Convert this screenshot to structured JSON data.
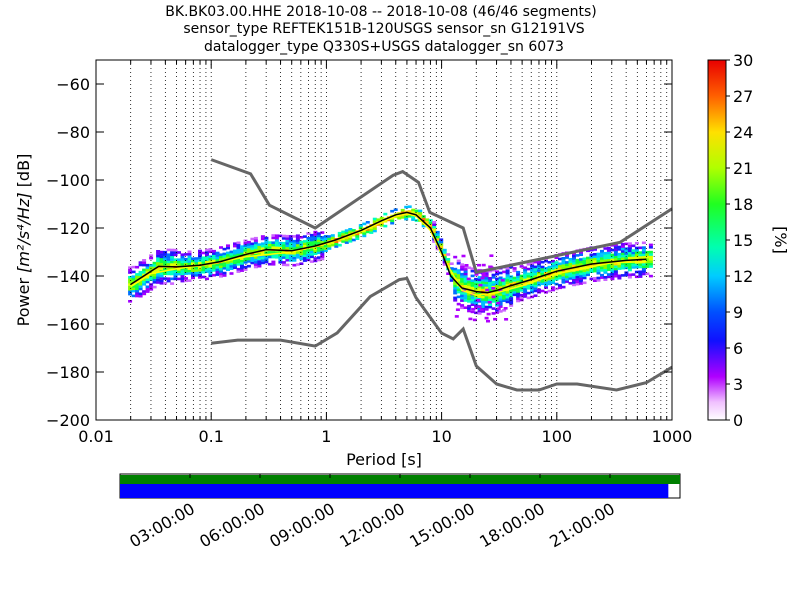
{
  "chart_data": {
    "type": "heatmap",
    "title_lines": [
      "BK.BK03.00.HHE   2018-10-08 -- 2018-10-08  (46/46 segments)",
      "sensor_type REFTEK151B-120USGS sensor_sn G12191VS",
      "datalogger_type Q330S+USGS datalogger_sn 6073"
    ],
    "xlabel": "Period [s]",
    "ylabel_prefix": "Power ",
    "ylabel_units": "[m²/s⁴/Hz]",
    "ylabel_suffix": " [dB]",
    "x_scale": "log",
    "xlim": [
      0.01,
      1000
    ],
    "ylim": [
      -200,
      -50
    ],
    "x_ticks": [
      {
        "value": 0.01,
        "label": "0.01"
      },
      {
        "value": 0.1,
        "label": "0.1"
      },
      {
        "value": 1,
        "label": "1"
      },
      {
        "value": 10,
        "label": "10"
      },
      {
        "value": 100,
        "label": "100"
      },
      {
        "value": 1000,
        "label": "1000"
      }
    ],
    "y_ticks": [
      -60,
      -80,
      -100,
      -120,
      -140,
      -160,
      -180,
      -200
    ],
    "grid": "dotted vertical lines at decade subdivisions",
    "colorbar": {
      "label": "[%]",
      "range": [
        0,
        30
      ],
      "ticks": [
        0,
        3,
        6,
        9,
        12,
        15,
        18,
        21,
        24,
        27,
        30
      ]
    },
    "noise_models": [
      {
        "name": "high",
        "points": [
          [
            0.1,
            -91.5
          ],
          [
            0.22,
            -97.4
          ],
          [
            0.32,
            -110.5
          ],
          [
            0.8,
            -120
          ],
          [
            3.8,
            -98
          ],
          [
            4.6,
            -96.5
          ],
          [
            6.3,
            -101
          ],
          [
            7.9,
            -113.5
          ],
          [
            15.4,
            -120
          ],
          [
            20,
            -138.5
          ],
          [
            354,
            -126
          ],
          [
            1000,
            -112
          ]
        ]
      },
      {
        "name": "low",
        "points": [
          [
            0.1,
            -168
          ],
          [
            0.17,
            -166.7
          ],
          [
            0.4,
            -166.7
          ],
          [
            0.8,
            -169.2
          ],
          [
            1.24,
            -163.7
          ],
          [
            2.4,
            -148.6
          ],
          [
            4.3,
            -141.5
          ],
          [
            5,
            -141
          ],
          [
            6,
            -149
          ],
          [
            10,
            -163.8
          ],
          [
            12.6,
            -166.2
          ],
          [
            15.4,
            -162.1
          ],
          [
            20,
            -177.5
          ],
          [
            30,
            -185
          ],
          [
            45,
            -187.5
          ],
          [
            70,
            -187.5
          ],
          [
            100,
            -185
          ],
          [
            150,
            -185
          ],
          [
            330,
            -187.5
          ],
          [
            600,
            -184.4
          ],
          [
            1000,
            -178
          ]
        ]
      }
    ],
    "psd_mean": [
      [
        0.02,
        -143.5
      ],
      [
        0.025,
        -140.5
      ],
      [
        0.03,
        -138
      ],
      [
        0.035,
        -136
      ],
      [
        0.05,
        -136.2
      ],
      [
        0.08,
        -135.5
      ],
      [
        0.12,
        -134
      ],
      [
        0.2,
        -131
      ],
      [
        0.3,
        -129
      ],
      [
        0.5,
        -129.5
      ],
      [
        0.8,
        -127.5
      ],
      [
        1.2,
        -125
      ],
      [
        2,
        -121
      ],
      [
        3,
        -117
      ],
      [
        4,
        -114.5
      ],
      [
        5,
        -113.5
      ],
      [
        6,
        -114.5
      ],
      [
        8,
        -120
      ],
      [
        10,
        -130
      ],
      [
        12,
        -140
      ],
      [
        15,
        -145
      ],
      [
        20,
        -146.5
      ],
      [
        25,
        -147
      ],
      [
        30,
        -146
      ],
      [
        40,
        -144
      ],
      [
        60,
        -141.5
      ],
      [
        100,
        -138
      ],
      [
        200,
        -135
      ],
      [
        400,
        -133.5
      ],
      [
        600,
        -133
      ]
    ],
    "psd_mode": [
      [
        0.02,
        -144.5
      ],
      [
        0.03,
        -139
      ],
      [
        0.05,
        -137
      ],
      [
        0.1,
        -135
      ],
      [
        0.2,
        -132
      ],
      [
        0.5,
        -130
      ],
      [
        1,
        -126.5
      ],
      [
        2,
        -121.5
      ],
      [
        4,
        -115
      ],
      [
        5,
        -114
      ],
      [
        6,
        -115
      ],
      [
        8,
        -121
      ],
      [
        10,
        -131
      ],
      [
        15,
        -146
      ],
      [
        20,
        -148
      ],
      [
        30,
        -147
      ],
      [
        50,
        -144
      ],
      [
        100,
        -139
      ],
      [
        300,
        -134.5
      ],
      [
        600,
        -134
      ]
    ],
    "timeline": {
      "tick_labels": [
        "03:00:00",
        "06:00:00",
        "09:00:00",
        "12:00:00",
        "15:00:00",
        "18:00:00",
        "21:00:00"
      ],
      "tick_hours": [
        3,
        6,
        9,
        12,
        15,
        18,
        21
      ],
      "range_hours": [
        0,
        24
      ],
      "data_coverage_end_hours": 24,
      "psd_coverage_end_hours": 23.5,
      "data_color": "#008000",
      "psd_color": "#0000ff"
    }
  }
}
